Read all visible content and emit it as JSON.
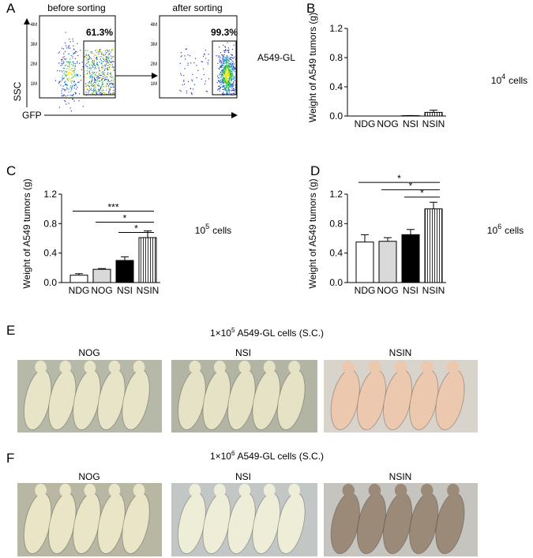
{
  "panel_a": {
    "label": "A",
    "before_title": "before sorting",
    "after_title": "after sorting",
    "before_gate": "61.3%",
    "after_gate": "99.3%",
    "cell_line": "A549-GL",
    "ylabel": "SSC",
    "xlabel": "GFP",
    "yticks": [
      "4M",
      "3M",
      "2M",
      "1M"
    ]
  },
  "chart_data": [
    {
      "type": "bar",
      "panel": "B",
      "ylabel": "Weight of A549 tumors (g)",
      "categories": [
        "NDG",
        "NOG",
        "NSI",
        "NSIN"
      ],
      "values": [
        0,
        0,
        0.005,
        0.05
      ],
      "errors": [
        0,
        0,
        0.002,
        0.03
      ],
      "colors": [
        "#ffffff",
        "#d9d9d9",
        "#000000",
        "#ffffff"
      ],
      "hatch": [
        false,
        false,
        false,
        true
      ],
      "ylim": [
        0,
        1.2
      ],
      "yticks": [
        {
          "value": 0,
          "label": "0.0"
        },
        0.4,
        0.8,
        1.2
      ],
      "annotation": {
        "base": "10",
        "exponent": "4",
        "unit": "cells"
      },
      "significance": []
    },
    {
      "type": "bar",
      "panel": "C",
      "ylabel": "Weight of A549 tumors (g)",
      "categories": [
        "NDG",
        "NOG",
        "NSI",
        "NSIN"
      ],
      "values": [
        0.1,
        0.18,
        0.3,
        0.61
      ],
      "errors": [
        0.02,
        0.01,
        0.05,
        0.09
      ],
      "colors": [
        "#ffffff",
        "#d9d9d9",
        "#000000",
        "#ffffff"
      ],
      "hatch": [
        false,
        false,
        false,
        true
      ],
      "ylim": [
        0,
        1.2
      ],
      "yticks": [
        {
          "value": 0,
          "label": "0.0"
        },
        0.4,
        0.8,
        1.2
      ],
      "annotation": {
        "base": "10",
        "exponent": "5",
        "unit": "cells"
      },
      "significance": [
        {
          "from": "NDG",
          "to": "NSIN",
          "label": "***",
          "y": 0.97
        },
        {
          "from": "NOG",
          "to": "NSIN",
          "label": "*",
          "y": 0.82
        },
        {
          "from": "NSI",
          "to": "NSIN",
          "label": "*",
          "y": 0.68
        }
      ]
    },
    {
      "type": "bar",
      "panel": "D",
      "ylabel": "Weight of A549 tumors (g)",
      "categories": [
        "NDG",
        "NOG",
        "NSI",
        "NSIN"
      ],
      "values": [
        0.55,
        0.56,
        0.65,
        1.0
      ],
      "errors": [
        0.1,
        0.05,
        0.07,
        0.09
      ],
      "colors": [
        "#ffffff",
        "#d9d9d9",
        "#000000",
        "#ffffff"
      ],
      "hatch": [
        false,
        false,
        false,
        true
      ],
      "ylim": [
        0,
        1.2
      ],
      "yticks": [
        {
          "value": 0,
          "label": "0.0"
        },
        0.4,
        0.8,
        1.2
      ],
      "annotation": {
        "base": "10",
        "exponent": "6",
        "unit": "cells"
      },
      "significance": [
        {
          "from": "NDG",
          "to": "NSIN",
          "label": "*",
          "y": 1.36
        },
        {
          "from": "NOG",
          "to": "NSIN",
          "label": "*",
          "y": 1.26
        },
        {
          "from": "NSI",
          "to": "NSIN",
          "label": "*",
          "y": 1.16
        }
      ]
    }
  ],
  "panel_e": {
    "label": "E",
    "title": {
      "prefix": "1×10",
      "exponent": "5",
      "suffix": "A549-GL cells (S.C.)"
    },
    "groups": [
      "NOG",
      "NSI",
      "NSIN"
    ]
  },
  "panel_f": {
    "label": "F",
    "title": {
      "prefix": "1×10",
      "exponent": "6",
      "suffix": "A549-GL cells (S.C.)"
    },
    "groups": [
      "NOG",
      "NSI",
      "NSIN"
    ]
  }
}
